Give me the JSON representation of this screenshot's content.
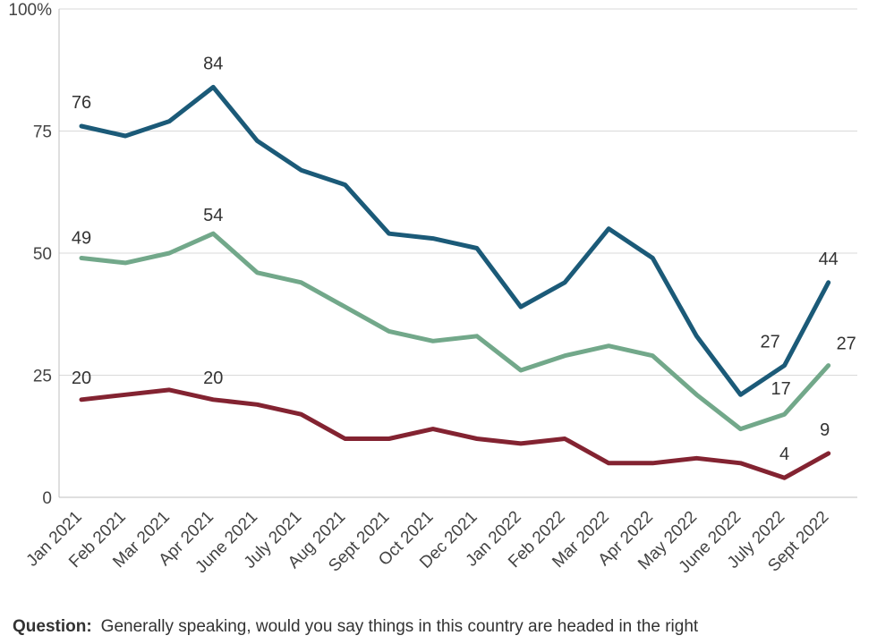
{
  "chart_data": {
    "type": "line",
    "categories": [
      "Jan 2021",
      "Feb 2021",
      "Mar 2021",
      "Apr 2021",
      "June 2021",
      "July 2021",
      "Aug 2021",
      "Sept 2021",
      "Oct 2021",
      "Dec 2021",
      "Jan 2022",
      "Feb 2022",
      "Mar 2022",
      "Apr 2022",
      "May 2022",
      "June 2022",
      "July 2022",
      "Sept 2022"
    ],
    "yticks": [
      "0",
      "25",
      "50",
      "75",
      "100%"
    ],
    "ylim": [
      0,
      100
    ],
    "grid": true,
    "series": [
      {
        "color": "#1b5a78",
        "values": [
          76,
          74,
          77,
          84,
          73,
          67,
          64,
          54,
          53,
          51,
          39,
          44,
          55,
          49,
          33,
          21,
          27,
          44
        ],
        "labels": [
          {
            "index": 0,
            "text": "76"
          },
          {
            "index": 3,
            "text": "84"
          },
          {
            "index": 16,
            "text": "27"
          },
          {
            "index": 17,
            "text": "44"
          }
        ]
      },
      {
        "color": "#72a88a",
        "values": [
          49,
          48,
          50,
          54,
          46,
          44,
          39,
          34,
          32,
          33,
          26,
          29,
          31,
          29,
          21,
          14,
          17,
          27
        ],
        "labels": [
          {
            "index": 0,
            "text": "49"
          },
          {
            "index": 3,
            "text": "54"
          },
          {
            "index": 16,
            "text": "17"
          },
          {
            "index": 17,
            "text": "27"
          }
        ]
      },
      {
        "color": "#832331",
        "values": [
          20,
          21,
          22,
          20,
          19,
          17,
          12,
          12,
          14,
          12,
          11,
          12,
          7,
          7,
          8,
          7,
          4,
          9
        ],
        "labels": [
          {
            "index": 0,
            "text": "20"
          },
          {
            "index": 3,
            "text": "20"
          },
          {
            "index": 16,
            "text": "4"
          },
          {
            "index": 17,
            "text": "9"
          }
        ]
      }
    ]
  },
  "footer": {
    "question_label": "Question:",
    "question_text": "Generally speaking, would you say things in this country are headed in the right"
  }
}
